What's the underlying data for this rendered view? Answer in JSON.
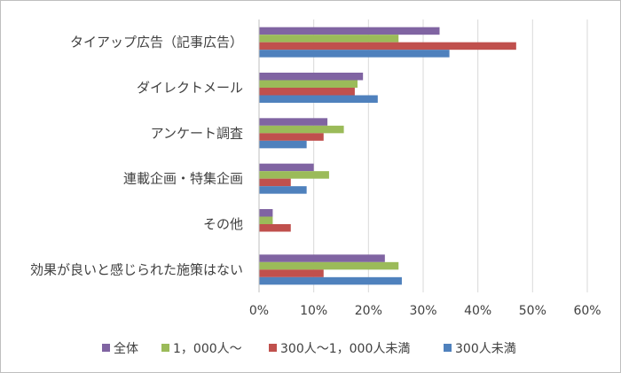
{
  "chart_data": {
    "type": "bar",
    "orientation": "horizontal",
    "categories": [
      "タイアップ広告（記事広告）",
      "ダイレクトメール",
      "アンケート調査",
      "連載企画・特集企画",
      "その他",
      "効果が良いと感じられた施策はない"
    ],
    "series": [
      {
        "name": "全体",
        "color": "#8064a2",
        "values": [
          33.0,
          19.0,
          12.5,
          10.0,
          2.5,
          23.0
        ]
      },
      {
        "name": "1，000人～",
        "color": "#9bbb59",
        "values": [
          25.5,
          18.0,
          15.5,
          12.8,
          2.5,
          25.5
        ]
      },
      {
        "name": "300人～1，000人未満",
        "color": "#c0504d",
        "values": [
          47.0,
          17.5,
          11.8,
          5.8,
          5.8,
          11.8
        ]
      },
      {
        "name": "300人未満",
        "color": "#4f81bd",
        "values": [
          34.8,
          21.7,
          8.7,
          8.7,
          0.0,
          26.1
        ]
      }
    ],
    "xlim": [
      0,
      60
    ],
    "xticks": [
      0,
      10,
      20,
      30,
      40,
      50,
      60
    ],
    "tick_labels": [
      "0%",
      "10%",
      "20%",
      "30%",
      "40%",
      "50%",
      "60%"
    ],
    "grid": true,
    "legend_position": "bottom",
    "title": "",
    "xlabel": "",
    "ylabel": ""
  }
}
